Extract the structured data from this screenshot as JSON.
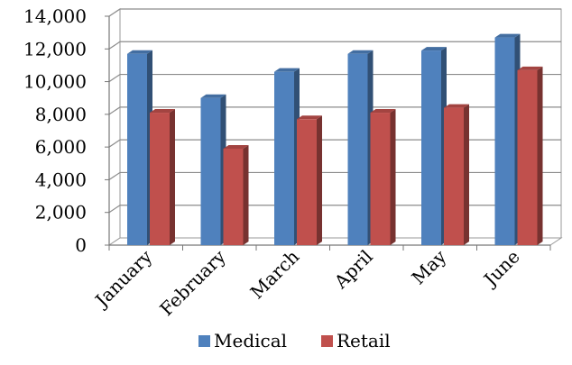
{
  "chart_data": {
    "type": "bar",
    "categories": [
      "January",
      "February",
      "March",
      "April",
      "May",
      "June"
    ],
    "series": [
      {
        "name": "Medical",
        "values": [
          11700,
          9000,
          10600,
          11700,
          11900,
          12700
        ],
        "color": "#4f81bd"
      },
      {
        "name": "Retail",
        "values": [
          8100,
          5900,
          7700,
          8100,
          8400,
          10700
        ],
        "color": "#c0504d"
      }
    ],
    "ylim": [
      0,
      14000
    ],
    "yticks": [
      "0",
      "2,000",
      "4,000",
      "6,000",
      "8,000",
      "10,000",
      "12,000",
      "14,000"
    ],
    "grid": true,
    "legend": "bottom",
    "title": "",
    "xlabel": "",
    "ylabel": ""
  }
}
